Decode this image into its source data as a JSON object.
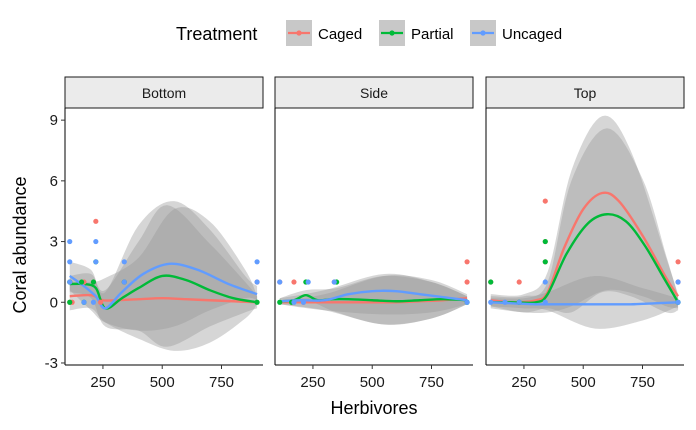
{
  "chart_data": {
    "type": "scatter",
    "xlabel": "Herbivores",
    "ylabel": "Coral abundance",
    "xlim": [
      90,
      925
    ],
    "ylim": [
      -3.1,
      9.6
    ],
    "x_ticks": [
      250,
      500,
      750
    ],
    "x_tick_labels": [
      "250",
      "500",
      "750"
    ],
    "y_ticks": [
      -3,
      0,
      3,
      6,
      9
    ],
    "y_tick_labels": [
      "-3",
      "0",
      "3",
      "6",
      "9"
    ],
    "legend": {
      "title": "Treatment",
      "position": "top",
      "entries": [
        {
          "name": "Caged",
          "color": "#F8766D"
        },
        {
          "name": "Partial",
          "color": "#00BA38"
        },
        {
          "name": "Uncaged",
          "color": "#619CFF"
        }
      ]
    },
    "grid": false,
    "facets": [
      {
        "name": "Bottom",
        "series": [
          {
            "name": "Caged",
            "points": [
              [
                110,
                1
              ],
              [
                110,
                0
              ],
              [
                120,
                0
              ],
              [
                170,
                1
              ],
              [
                210,
                1
              ],
              [
                220,
                4
              ],
              [
                240,
                0
              ],
              [
                340,
                1
              ],
              [
                900,
                1
              ]
            ],
            "smooth": [
              [
                110,
                0.3
              ],
              [
                200,
                0.35
              ],
              [
                250,
                0.1
              ],
              [
                300,
                0.1
              ],
              [
                400,
                0.15
              ],
              [
                500,
                0.2
              ],
              [
                600,
                0.15
              ],
              [
                700,
                0.1
              ],
              [
                800,
                0.05
              ],
              [
                900,
                0
              ]
            ],
            "band": [
              [
                110,
                -0.4,
                1.0
              ],
              [
                200,
                -0.3,
                1.0
              ],
              [
                260,
                -1.0,
                1.2
              ],
              [
                400,
                -1.8,
                2.2
              ],
              [
                550,
                -2.4,
                4.6
              ],
              [
                700,
                -2.0,
                4.0
              ],
              [
                850,
                -0.8,
                1.6
              ],
              [
                900,
                -0.1,
                0.3
              ]
            ]
          },
          {
            "name": "Partial",
            "points": [
              [
                110,
                1
              ],
              [
                110,
                0
              ],
              [
                160,
                1
              ],
              [
                170,
                0
              ],
              [
                210,
                1
              ],
              [
                220,
                2
              ],
              [
                340,
                1
              ],
              [
                900,
                0
              ]
            ],
            "smooth": [
              [
                110,
                0.9
              ],
              [
                170,
                0.9
              ],
              [
                220,
                0.7
              ],
              [
                260,
                -0.3
              ],
              [
                330,
                0.2
              ],
              [
                400,
                0.7
              ],
              [
                500,
                1.3
              ],
              [
                600,
                1.1
              ],
              [
                700,
                0.6
              ],
              [
                800,
                0.2
              ],
              [
                900,
                0
              ]
            ],
            "band": [
              [
                110,
                0.5,
                1.3
              ],
              [
                200,
                0.2,
                1.4
              ],
              [
                260,
                -1.2,
                0.6
              ],
              [
                400,
                -1.4,
                3.0
              ],
              [
                520,
                -2.2,
                4.8
              ],
              [
                700,
                -1.2,
                2.9
              ],
              [
                850,
                -0.5,
                1.0
              ],
              [
                900,
                -0.3,
                0.3
              ]
            ]
          },
          {
            "name": "Uncaged",
            "points": [
              [
                110,
                3
              ],
              [
                110,
                2
              ],
              [
                110,
                1
              ],
              [
                170,
                0
              ],
              [
                210,
                0
              ],
              [
                220,
                3
              ],
              [
                220,
                2
              ],
              [
                340,
                2
              ],
              [
                340,
                1
              ],
              [
                900,
                2
              ],
              [
                900,
                1
              ]
            ],
            "smooth": [
              [
                110,
                1.3
              ],
              [
                170,
                0.8
              ],
              [
                220,
                0.3
              ],
              [
                260,
                -0.3
              ],
              [
                330,
                0.5
              ],
              [
                420,
                1.4
              ],
              [
                530,
                1.9
              ],
              [
                650,
                1.6
              ],
              [
                780,
                0.9
              ],
              [
                900,
                0.4
              ]
            ],
            "band": [
              [
                110,
                0.6,
                2.0
              ],
              [
                200,
                -0.4,
                1.6
              ],
              [
                260,
                -1.0,
                0.5
              ],
              [
                400,
                -1.4,
                3.8
              ],
              [
                550,
                -1.2,
                5.0
              ],
              [
                700,
                -0.4,
                3.6
              ],
              [
                850,
                0.2,
                1.3
              ],
              [
                900,
                0.1,
                0.8
              ]
            ]
          }
        ]
      },
      {
        "name": "Side",
        "series": [
          {
            "name": "Caged",
            "points": [
              [
                110,
                1
              ],
              [
                170,
                1
              ],
              [
                210,
                0
              ],
              [
                340,
                1
              ],
              [
                900,
                2
              ],
              [
                900,
                1
              ]
            ],
            "smooth": [
              [
                110,
                0
              ],
              [
                200,
                0
              ],
              [
                300,
                0
              ],
              [
                400,
                0
              ],
              [
                500,
                0
              ],
              [
                600,
                0
              ],
              [
                700,
                0.05
              ],
              [
                800,
                0.1
              ],
              [
                900,
                0.2
              ]
            ],
            "band": [
              [
                110,
                -0.1,
                0.1
              ],
              [
                300,
                -0.4,
                0.4
              ],
              [
                550,
                -1.1,
                1.3
              ],
              [
                750,
                -0.8,
                1.1
              ],
              [
                900,
                -0.1,
                0.4
              ]
            ]
          },
          {
            "name": "Partial",
            "points": [
              [
                110,
                0
              ],
              [
                160,
                0
              ],
              [
                220,
                1
              ],
              [
                350,
                1
              ],
              [
                900,
                0
              ]
            ],
            "smooth": [
              [
                110,
                0.05
              ],
              [
                170,
                0.1
              ],
              [
                220,
                0.35
              ],
              [
                270,
                0.1
              ],
              [
                330,
                0.15
              ],
              [
                400,
                0.15
              ],
              [
                500,
                0.1
              ],
              [
                600,
                0.05
              ],
              [
                700,
                0.1
              ],
              [
                800,
                0.15
              ],
              [
                900,
                0.1
              ]
            ],
            "band": [
              [
                110,
                -0.1,
                0.2
              ],
              [
                220,
                0.1,
                0.6
              ],
              [
                350,
                -0.5,
                0.7
              ],
              [
                550,
                -1.1,
                1.3
              ],
              [
                750,
                -0.8,
                1.0
              ],
              [
                900,
                -0.1,
                0.3
              ]
            ]
          },
          {
            "name": "Uncaged",
            "points": [
              [
                110,
                1
              ],
              [
                170,
                0
              ],
              [
                210,
                0
              ],
              [
                230,
                1
              ],
              [
                340,
                1
              ],
              [
                900,
                0
              ]
            ],
            "smooth": [
              [
                110,
                0.05
              ],
              [
                200,
                0.1
              ],
              [
                300,
                0.1
              ],
              [
                400,
                0.4
              ],
              [
                500,
                0.55
              ],
              [
                600,
                0.55
              ],
              [
                700,
                0.4
              ],
              [
                800,
                0.25
              ],
              [
                900,
                0.1
              ]
            ],
            "band": [
              [
                110,
                -0.1,
                0.2
              ],
              [
                300,
                -0.4,
                0.6
              ],
              [
                550,
                -0.6,
                1.4
              ],
              [
                750,
                -0.5,
                1.0
              ],
              [
                900,
                -0.1,
                0.3
              ]
            ]
          }
        ]
      },
      {
        "name": "Top",
        "series": [
          {
            "name": "Caged",
            "points": [
              [
                110,
                1
              ],
              [
                230,
                1
              ],
              [
                340,
                5
              ],
              [
                340,
                3
              ],
              [
                340,
                2
              ],
              [
                900,
                2
              ],
              [
                900,
                1
              ]
            ],
            "smooth": [
              [
                110,
                0.1
              ],
              [
                200,
                0
              ],
              [
                300,
                0.1
              ],
              [
                350,
                0.5
              ],
              [
                420,
                2.7
              ],
              [
                500,
                4.6
              ],
              [
                580,
                5.4
              ],
              [
                650,
                5.0
              ],
              [
                750,
                3.3
              ],
              [
                850,
                1.2
              ],
              [
                900,
                0.3
              ]
            ],
            "band": [
              [
                110,
                -0.2,
                0.4
              ],
              [
                250,
                -0.5,
                0.4
              ],
              [
                350,
                -0.3,
                1.5
              ],
              [
                450,
                -0.5,
                6.5
              ],
              [
                580,
                0.5,
                9.2
              ],
              [
                700,
                0.3,
                7.5
              ],
              [
                850,
                -0.5,
                2.2
              ],
              [
                900,
                -0.4,
                0.4
              ]
            ]
          },
          {
            "name": "Partial",
            "points": [
              [
                110,
                1
              ],
              [
                230,
                0
              ],
              [
                340,
                3
              ],
              [
                340,
                2
              ],
              [
                900,
                0
              ]
            ],
            "smooth": [
              [
                110,
                0
              ],
              [
                200,
                0
              ],
              [
                300,
                0
              ],
              [
                350,
                0.4
              ],
              [
                430,
                2.4
              ],
              [
                520,
                3.9
              ],
              [
                600,
                4.35
              ],
              [
                680,
                4.0
              ],
              [
                760,
                2.8
              ],
              [
                840,
                1.2
              ],
              [
                900,
                0
              ]
            ],
            "band": [
              [
                110,
                -0.3,
                0.3
              ],
              [
                250,
                -0.5,
                0.3
              ],
              [
                350,
                -0.5,
                1.0
              ],
              [
                450,
                -0.2,
                6.0
              ],
              [
                600,
                0.6,
                8.6
              ],
              [
                750,
                0.3,
                6.1
              ],
              [
                850,
                -0.2,
                2.3
              ],
              [
                900,
                -0.3,
                0.3
              ]
            ]
          },
          {
            "name": "Uncaged",
            "points": [
              [
                110,
                0
              ],
              [
                170,
                0
              ],
              [
                230,
                0
              ],
              [
                340,
                1
              ],
              [
                340,
                0
              ],
              [
                900,
                1
              ],
              [
                900,
                0
              ]
            ],
            "smooth": [
              [
                110,
                0
              ],
              [
                200,
                -0.05
              ],
              [
                300,
                -0.1
              ],
              [
                400,
                -0.1
              ],
              [
                500,
                -0.1
              ],
              [
                600,
                -0.1
              ],
              [
                700,
                -0.1
              ],
              [
                800,
                -0.05
              ],
              [
                900,
                0
              ]
            ],
            "band": [
              [
                110,
                -0.2,
                0.2
              ],
              [
                250,
                -0.3,
                0.2
              ],
              [
                350,
                -0.4,
                0.5
              ],
              [
                550,
                -1.3,
                1.3
              ],
              [
                750,
                -0.9,
                0.7
              ],
              [
                900,
                -0.2,
                0.2
              ]
            ]
          }
        ]
      }
    ]
  }
}
